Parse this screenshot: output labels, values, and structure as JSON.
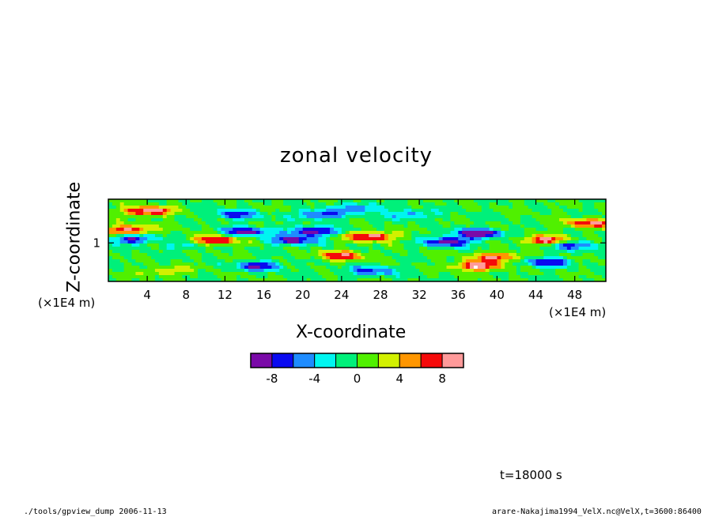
{
  "chart_data": {
    "type": "heatmap",
    "title": "zonal velocity",
    "xlabel": "X-coordinate",
    "ylabel": "Z-coordinate",
    "x_unit": "(×1E4 m)",
    "y_unit": "(×1E4 m)",
    "x_ticks": [
      4,
      8,
      12,
      16,
      20,
      24,
      28,
      32,
      36,
      40,
      44,
      48
    ],
    "y_ticks": [
      1
    ],
    "xlim": [
      0,
      51.2
    ],
    "ylim": [
      0.25,
      1.85
    ],
    "colorbar": {
      "colors": [
        "#7a0aa8",
        "#0a0af0",
        "#1e8cff",
        "#00f5f0",
        "#00f07a",
        "#50f000",
        "#d2f000",
        "#ff9600",
        "#f50a0a",
        "#ff9a9a"
      ],
      "tick_labels": [
        "-8",
        "-4",
        "0",
        "4",
        "8"
      ],
      "tick_values": [
        -8,
        -4,
        0,
        4,
        8
      ],
      "range": [
        -10,
        10
      ]
    },
    "features": [
      {
        "x": 2.0,
        "z": 1.25,
        "value": 9
      },
      {
        "x": 4.0,
        "z": 1.62,
        "value": 10
      },
      {
        "x": 2.5,
        "z": 1.07,
        "value": -8
      },
      {
        "x": 11.0,
        "z": 1.05,
        "value": 9
      },
      {
        "x": 13.0,
        "z": 1.55,
        "value": -7
      },
      {
        "x": 14.0,
        "z": 1.22,
        "value": -9
      },
      {
        "x": 15.5,
        "z": 0.55,
        "value": -8
      },
      {
        "x": 19.0,
        "z": 1.05,
        "value": -9
      },
      {
        "x": 21.0,
        "z": 1.22,
        "value": -10
      },
      {
        "x": 22.0,
        "z": 1.55,
        "value": -8
      },
      {
        "x": 24.0,
        "z": 0.75,
        "value": 8
      },
      {
        "x": 26.0,
        "z": 1.68,
        "value": -6
      },
      {
        "x": 27.0,
        "z": 1.12,
        "value": 10
      },
      {
        "x": 27.0,
        "z": 0.45,
        "value": -7
      },
      {
        "x": 35.0,
        "z": 1.02,
        "value": -10
      },
      {
        "x": 38.0,
        "z": 1.18,
        "value": -11
      },
      {
        "x": 38.0,
        "z": 0.55,
        "value": 10
      },
      {
        "x": 40.0,
        "z": 0.72,
        "value": 8
      },
      {
        "x": 45.0,
        "z": 1.05,
        "value": 9
      },
      {
        "x": 45.0,
        "z": 0.62,
        "value": -8
      },
      {
        "x": 48.0,
        "z": 0.95,
        "value": -7
      },
      {
        "x": 49.5,
        "z": 1.38,
        "value": 8
      },
      {
        "x": 8.0,
        "z": 0.95,
        "value": -3
      },
      {
        "x": 31.0,
        "z": 1.55,
        "value": -5
      },
      {
        "x": 6.0,
        "z": 0.45,
        "value": 4
      }
    ]
  },
  "time_label": "t=18000 s",
  "footer_left": "./tools/gpview_dump  2006-11-13",
  "footer_right": "arare-Nakajima1994_VelX.nc@VelX,t=3600:86400"
}
